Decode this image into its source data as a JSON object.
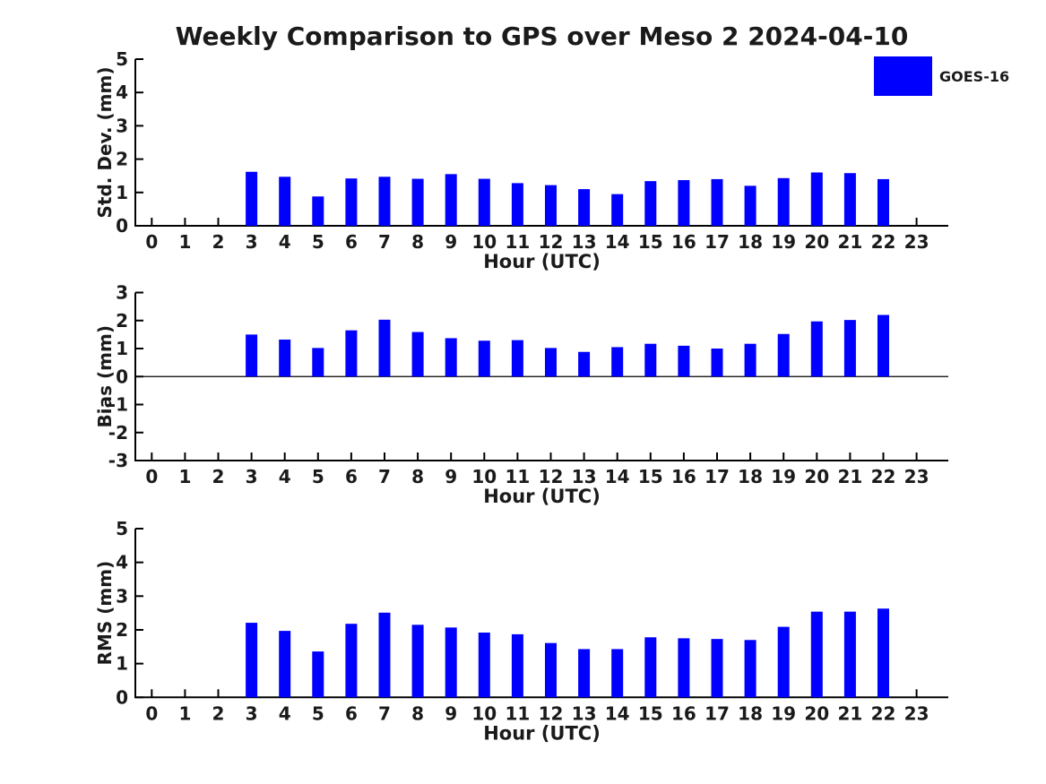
{
  "title": "Weekly Comparison to GPS over Meso 2 2024-04-10",
  "legend": {
    "label": "GOES-16",
    "color": "#0000FF",
    "position": "top-right"
  },
  "axis": {
    "line_color": "#000000",
    "text_color": "#1a1a1a"
  },
  "chart_data": [
    {
      "id": "stddev",
      "type": "bar",
      "title": "Weekly Comparison to GPS over Meso 2 2024-04-10",
      "ylabel": "Std. Dev. (mm)",
      "xlabel": "Hour (UTC)",
      "ylim": [
        0,
        5
      ],
      "yticks": [
        0,
        1,
        2,
        3,
        4,
        5
      ],
      "grid": false,
      "zero_line": false,
      "legend_position": "top-right",
      "x": [
        0,
        1,
        2,
        3,
        4,
        5,
        6,
        7,
        8,
        9,
        10,
        11,
        12,
        13,
        14,
        15,
        16,
        17,
        18,
        19,
        20,
        21,
        22,
        23
      ],
      "series": [
        {
          "name": "GOES-16",
          "values": [
            null,
            null,
            null,
            1.62,
            1.47,
            0.88,
            1.42,
            1.47,
            1.41,
            1.55,
            1.41,
            1.28,
            1.22,
            1.1,
            0.95,
            1.34,
            1.37,
            1.4,
            1.2,
            1.43,
            1.6,
            1.58,
            1.4,
            null
          ]
        }
      ]
    },
    {
      "id": "bias",
      "type": "bar",
      "title": "",
      "ylabel": "Bias (mm)",
      "xlabel": "Hour (UTC)",
      "ylim": [
        -3,
        3
      ],
      "yticks": [
        -3,
        -2,
        -1,
        0,
        1,
        2,
        3
      ],
      "grid": false,
      "zero_line": true,
      "legend_position": "none",
      "x": [
        0,
        1,
        2,
        3,
        4,
        5,
        6,
        7,
        8,
        9,
        10,
        11,
        12,
        13,
        14,
        15,
        16,
        17,
        18,
        19,
        20,
        21,
        22,
        23
      ],
      "series": [
        {
          "name": "GOES-16",
          "values": [
            null,
            null,
            null,
            1.5,
            1.32,
            1.02,
            1.65,
            2.03,
            1.59,
            1.37,
            1.28,
            1.3,
            1.02,
            0.88,
            1.05,
            1.17,
            1.1,
            1.0,
            1.17,
            1.52,
            1.97,
            2.02,
            2.2,
            null
          ]
        }
      ]
    },
    {
      "id": "rms",
      "type": "bar",
      "title": "",
      "ylabel": "RMS (mm)",
      "xlabel": "Hour (UTC)",
      "ylim": [
        0,
        5
      ],
      "yticks": [
        0,
        1,
        2,
        3,
        4,
        5
      ],
      "grid": false,
      "zero_line": false,
      "legend_position": "none",
      "x": [
        0,
        1,
        2,
        3,
        4,
        5,
        6,
        7,
        8,
        9,
        10,
        11,
        12,
        13,
        14,
        15,
        16,
        17,
        18,
        19,
        20,
        21,
        22,
        23
      ],
      "series": [
        {
          "name": "GOES-16",
          "values": [
            null,
            null,
            null,
            2.21,
            1.97,
            1.36,
            2.18,
            2.51,
            2.15,
            2.07,
            1.92,
            1.87,
            1.61,
            1.43,
            1.43,
            1.78,
            1.75,
            1.73,
            1.7,
            2.09,
            2.54,
            2.54,
            2.63,
            null
          ]
        }
      ]
    }
  ]
}
